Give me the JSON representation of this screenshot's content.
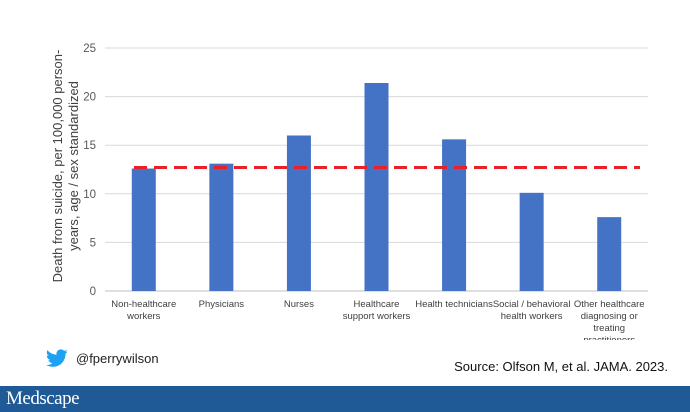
{
  "chart_data": {
    "type": "bar",
    "categories": [
      [
        "Non-healthcare",
        "workers"
      ],
      [
        "Physicians"
      ],
      [
        "Nurses"
      ],
      [
        "Healthcare",
        "support workers"
      ],
      [
        "Health technicians"
      ],
      [
        "Social / behavioral",
        "health workers"
      ],
      [
        "Other healthcare",
        "diagnosing or",
        "treating",
        "practitioners"
      ]
    ],
    "values": [
      12.6,
      13.1,
      16.0,
      21.4,
      15.6,
      10.1,
      7.6
    ],
    "reference_line": 12.7,
    "ylabel": [
      "Death from suicide, per 100,000 person-",
      "years, age / sex standardized"
    ],
    "ylim": [
      0,
      25
    ],
    "yticks": [
      0,
      5,
      10,
      15,
      20,
      25
    ],
    "grid": true,
    "bar_color": "#4472c4",
    "reference_line_color": "#e8202a",
    "gridline_color": "#d9d9d9"
  },
  "social": {
    "icon": "twitter-bird-icon",
    "handle": "@fperrywilson",
    "icon_color": "#1da1f2"
  },
  "source_text": "Source: Olfson M, et al. JAMA. 2023.",
  "footer": {
    "logo_text": "Medscape",
    "background": "#1f5a96"
  }
}
